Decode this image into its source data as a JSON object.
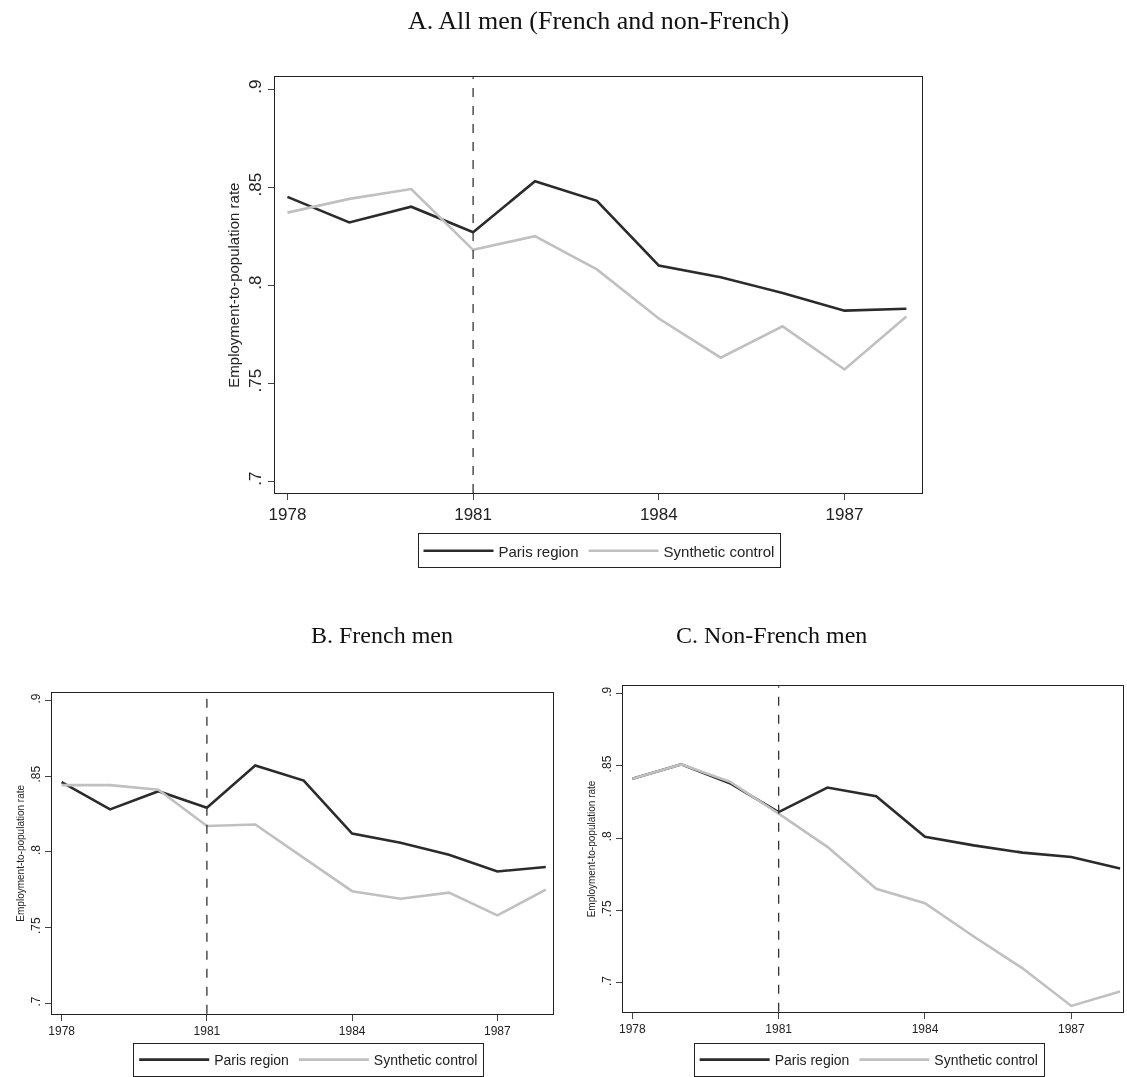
{
  "chart_data": [
    {
      "type": "line",
      "title": "A. All men (French and non-French)",
      "ylabel": "Employment-to-population rate",
      "x": [
        1978,
        1979,
        1980,
        1981,
        1982,
        1983,
        1984,
        1985,
        1986,
        1987,
        1988
      ],
      "series": [
        {
          "name": "Paris region",
          "color": "#2b2b2b",
          "values": [
            0.845,
            0.832,
            0.84,
            0.827,
            0.853,
            0.843,
            0.81,
            0.804,
            0.796,
            0.787,
            0.788
          ]
        },
        {
          "name": "Synthetic control",
          "color": "#c0c0c0",
          "values": [
            0.837,
            0.844,
            0.849,
            0.818,
            0.825,
            0.808,
            0.783,
            0.763,
            0.779,
            0.757,
            0.784
          ]
        }
      ],
      "xlim": [
        1977.8,
        1988.25
      ],
      "ylim": [
        0.694,
        0.906
      ],
      "xticks": [
        1978,
        1981,
        1984,
        1987
      ],
      "yticks": [
        {
          "value": 0.7,
          "label": ".7"
        },
        {
          "value": 0.75,
          "label": ".75"
        },
        {
          "value": 0.8,
          "label": ".8"
        },
        {
          "value": 0.85,
          "label": ".85"
        },
        {
          "value": 0.9,
          "label": ".9"
        }
      ],
      "ref_lines": [
        {
          "axis": "x",
          "value": 1981,
          "line_style": "dashed",
          "color": "#333333"
        }
      ],
      "legend": "bottom",
      "marker": "none",
      "line_style": "solid"
    },
    {
      "type": "line",
      "title": "B. French men",
      "ylabel": "Employment-to-population rate",
      "x": [
        1978,
        1979,
        1980,
        1981,
        1982,
        1983,
        1984,
        1985,
        1986,
        1987,
        1988
      ],
      "series": [
        {
          "name": "Paris region",
          "color": "#2b2b2b",
          "values": [
            0.846,
            0.828,
            0.84,
            0.829,
            0.857,
            0.847,
            0.812,
            0.806,
            0.798,
            0.787,
            0.79
          ]
        },
        {
          "name": "Synthetic control",
          "color": "#c0c0c0",
          "values": [
            0.844,
            0.844,
            0.841,
            0.817,
            0.818,
            0.796,
            0.774,
            0.769,
            0.773,
            0.758,
            0.775
          ]
        }
      ],
      "xlim": [
        1977.8,
        1988.15
      ],
      "ylim": [
        0.693,
        0.905
      ],
      "xticks": [
        1978,
        1981,
        1984,
        1987
      ],
      "yticks": [
        {
          "value": 0.7,
          "label": ".7"
        },
        {
          "value": 0.75,
          "label": ".75"
        },
        {
          "value": 0.8,
          "label": ".8"
        },
        {
          "value": 0.85,
          "label": ".85"
        },
        {
          "value": 0.9,
          "label": ".9"
        }
      ],
      "ref_lines": [
        {
          "axis": "x",
          "value": 1981,
          "line_style": "dashed",
          "color": "#333333"
        }
      ],
      "legend": "bottom",
      "marker": "none",
      "line_style": "solid"
    },
    {
      "type": "line",
      "title": "C. Non-French men",
      "ylabel": "Employment-to-population rate",
      "x": [
        1978,
        1979,
        1980,
        1981,
        1982,
        1983,
        1984,
        1985,
        1986,
        1987,
        1988
      ],
      "series": [
        {
          "name": "Paris region",
          "color": "#2b2b2b",
          "values": [
            0.841,
            0.851,
            0.838,
            0.818,
            0.835,
            0.829,
            0.801,
            0.795,
            0.79,
            0.787,
            0.779
          ]
        },
        {
          "name": "Synthetic control",
          "color": "#c0c0c0",
          "values": [
            0.841,
            0.851,
            0.839,
            0.817,
            0.794,
            0.765,
            0.755,
            0.732,
            0.71,
            0.684,
            0.694
          ]
        }
      ],
      "xlim": [
        1977.8,
        1988.05
      ],
      "ylim": [
        0.68,
        0.905
      ],
      "xticks": [
        1978,
        1981,
        1984,
        1987
      ],
      "yticks": [
        {
          "value": 0.7,
          "label": ".7"
        },
        {
          "value": 0.75,
          "label": ".75"
        },
        {
          "value": 0.8,
          "label": ".8"
        },
        {
          "value": 0.85,
          "label": ".85"
        },
        {
          "value": 0.9,
          "label": ".9"
        }
      ],
      "ref_lines": [
        {
          "axis": "x",
          "value": 1981,
          "line_style": "dashed",
          "color": "#333333"
        }
      ],
      "legend": "bottom",
      "marker": "none",
      "line_style": "solid"
    }
  ]
}
